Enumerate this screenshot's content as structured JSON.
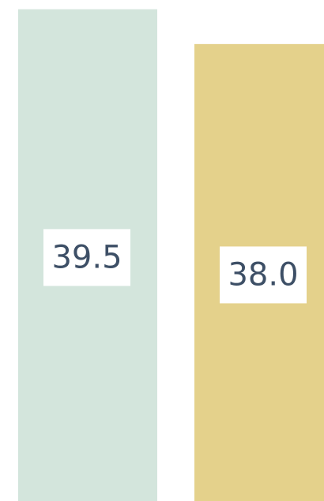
{
  "chart_data": {
    "type": "bar",
    "categories": [
      null,
      null
    ],
    "values": [
      39.5,
      38.0
    ],
    "value_labels": [
      "39.5",
      "38.0"
    ],
    "colors": [
      "#d3e5dc",
      "#e4d18b"
    ],
    "ylim": [
      18.3,
      39.9
    ]
  }
}
